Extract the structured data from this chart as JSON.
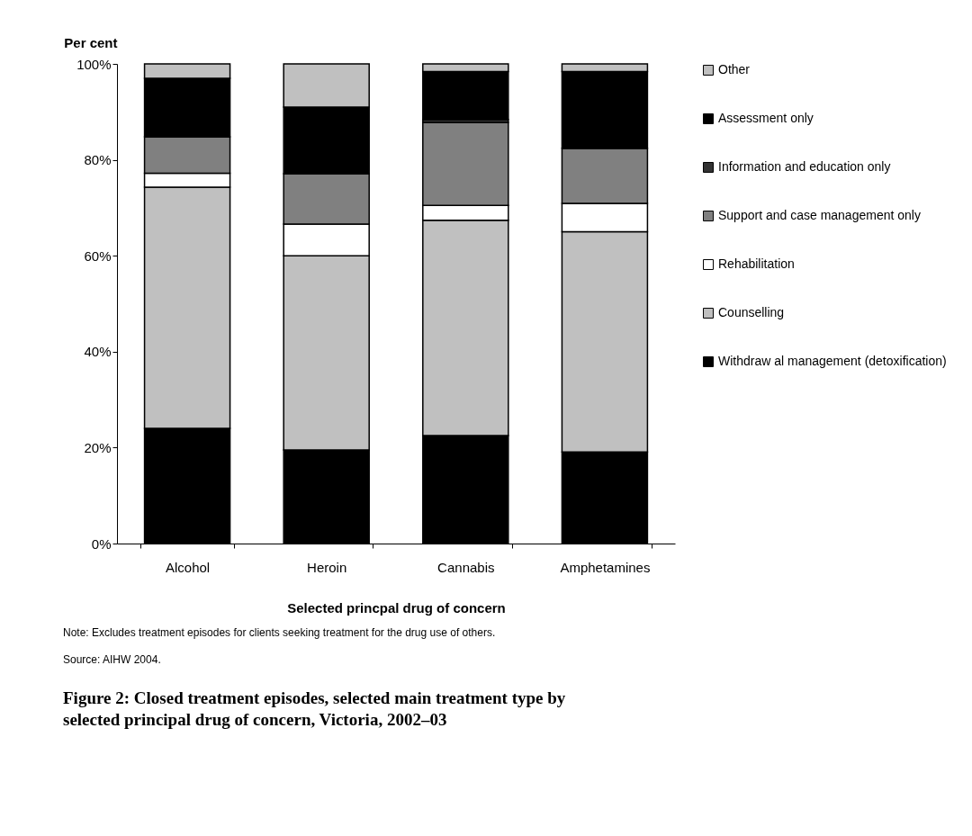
{
  "chart_data": {
    "type": "bar",
    "stacked": true,
    "categories": [
      "Alcohol",
      "Heroin",
      "Cannabis",
      "Amphetamines"
    ],
    "series": [
      {
        "name": "Withdraw al management (detoxification)",
        "color": "#000000",
        "values": [
          24.0,
          19.5,
          22.5,
          19.1
        ]
      },
      {
        "name": "Counselling",
        "color": "#c0c0c0",
        "values": [
          50.3,
          40.5,
          44.9,
          45.9
        ]
      },
      {
        "name": "Rehabilitation",
        "color": "#ffffff",
        "values": [
          2.9,
          6.6,
          3.1,
          5.9
        ]
      },
      {
        "name": "Support and case management only",
        "color": "#808080",
        "values": [
          7.6,
          10.5,
          17.3,
          11.5
        ]
      },
      {
        "name": "Information and education only",
        "color": "#333333",
        "values": [
          0,
          0,
          0.6,
          0
        ]
      },
      {
        "name": "Assessment only",
        "color": "#000000",
        "values": [
          12.2,
          13.9,
          10.0,
          16.0
        ]
      },
      {
        "name": "Other",
        "color": "#c0c0c0",
        "values": [
          3.0,
          9.0,
          1.6,
          1.6
        ]
      }
    ],
    "ylim": [
      0,
      100
    ],
    "yticks": [
      {
        "value": 0,
        "label": "0%"
      },
      {
        "value": 20,
        "label": "20%"
      },
      {
        "value": 40,
        "label": "40%"
      },
      {
        "value": 60,
        "label": "60%"
      },
      {
        "value": 80,
        "label": "80%"
      },
      {
        "value": 100,
        "label": "100%"
      }
    ],
    "ylabel": "Per cent",
    "xlabel": "Selected princpal drug of concern",
    "legend": "right",
    "grid": false,
    "title": "Figure 2: Closed treatment episodes, selected main treatment type by selected principal drug of concern, Victoria, 2002–03",
    "annotations": [
      "Note:     Excludes treatment episodes for clients seeking treatment for the drug use of others.",
      "Source: AIHW 2004."
    ]
  }
}
